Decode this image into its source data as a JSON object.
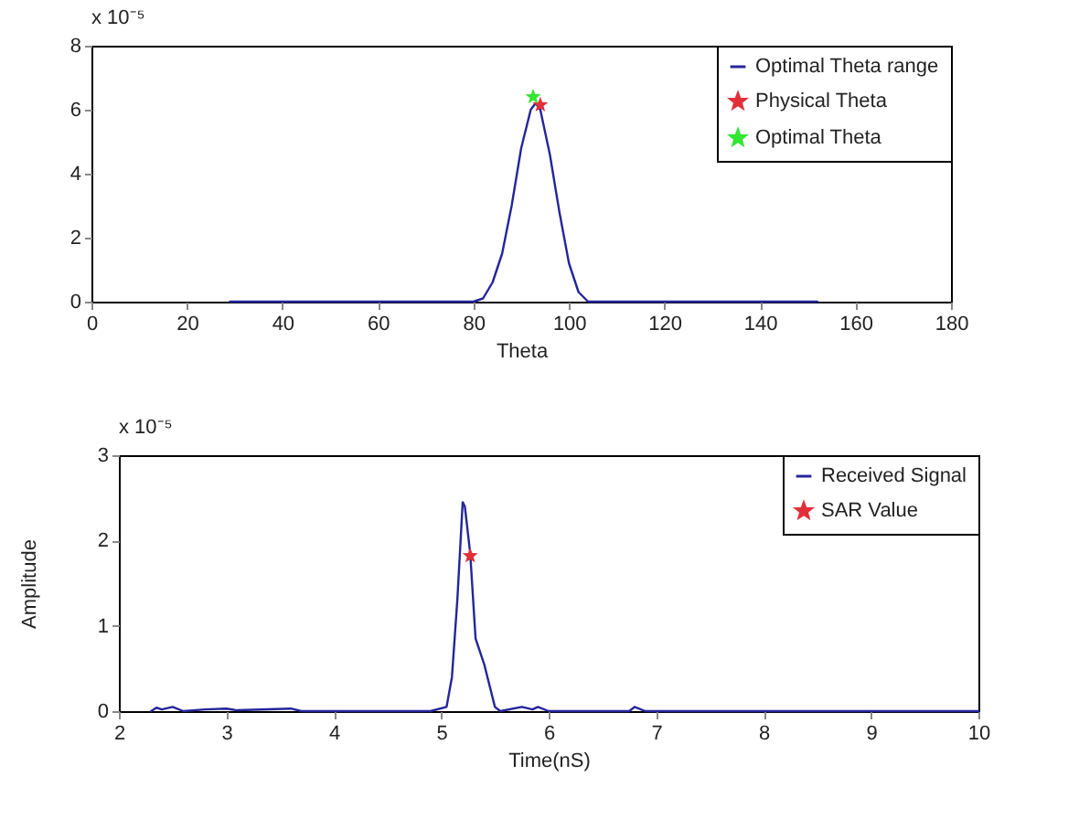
{
  "chart_data": [
    {
      "type": "line",
      "xlabel": "Theta",
      "annotations": [
        "x 10⁻⁵"
      ],
      "xlim": [
        0,
        180
      ],
      "xticks": [
        0,
        20,
        40,
        60,
        80,
        100,
        120,
        140,
        160,
        180
      ],
      "ylim": [
        0,
        8
      ],
      "yticks": [
        0,
        2,
        4,
        6,
        8
      ],
      "legend": "top right",
      "series": [
        {
          "name": "Optimal Theta range",
          "type": "line",
          "color": "#25259a",
          "x": [
            29,
            80,
            82,
            84,
            86,
            88,
            90,
            92,
            93,
            94,
            96,
            98,
            100,
            102,
            104,
            152
          ],
          "values": [
            0,
            0,
            0.1,
            0.6,
            1.5,
            3.0,
            4.8,
            6.0,
            6.2,
            6.0,
            4.6,
            2.8,
            1.2,
            0.3,
            0,
            0
          ]
        },
        {
          "name": "Physical Theta",
          "type": "scatter",
          "marker": "star",
          "color": "#e0303a",
          "x": [
            94
          ],
          "values": [
            6.15
          ]
        },
        {
          "name": "Optimal Theta",
          "type": "scatter",
          "marker": "star",
          "color": "#33e633",
          "x": [
            92.5
          ],
          "values": [
            6.4
          ]
        }
      ]
    },
    {
      "type": "line",
      "xlabel": "Time(nS)",
      "ylabel": "Amplitude",
      "annotations": [
        "x 10⁻⁵"
      ],
      "xlim": [
        2,
        10
      ],
      "xticks": [
        {
          "value": 2,
          "label": "2"
        },
        {
          "value": 3,
          "label": "3"
        },
        {
          "value": 4,
          "label": "4"
        },
        {
          "value": 5,
          "label": "5"
        },
        {
          "value": 6,
          "label": "6"
        },
        {
          "value": 7,
          "label": "7"
        },
        {
          "value": 8,
          "label": "8"
        },
        {
          "value": 9,
          "label": "9"
        },
        {
          "value": 10,
          "label": "10"
        }
      ],
      "ylim": [
        0,
        3
      ],
      "yticks": [
        0,
        1,
        2,
        3
      ],
      "legend": "top right",
      "series": [
        {
          "name": "Received Signal",
          "type": "line",
          "color": "#25259a",
          "x": [
            2.3,
            2.35,
            2.4,
            2.5,
            2.6,
            2.8,
            3.0,
            3.1,
            3.6,
            3.7,
            4.9,
            5.05,
            5.1,
            5.15,
            5.2,
            5.22,
            5.27,
            5.32,
            5.4,
            5.45,
            5.5,
            5.55,
            5.75,
            5.85,
            5.9,
            6.0,
            6.75,
            6.8,
            6.9,
            10
          ],
          "values": [
            0,
            0.04,
            0.02,
            0.05,
            0,
            0.02,
            0.03,
            0.01,
            0.03,
            0,
            0,
            0.05,
            0.4,
            1.3,
            2.45,
            2.4,
            1.85,
            0.85,
            0.55,
            0.3,
            0.05,
            0,
            0.05,
            0.02,
            0.05,
            0,
            0,
            0.05,
            0,
            0
          ]
        },
        {
          "name": "SAR Value",
          "type": "scatter",
          "marker": "star",
          "color": "#e0303a",
          "x": [
            5.27
          ],
          "values": [
            1.82
          ]
        }
      ]
    }
  ]
}
